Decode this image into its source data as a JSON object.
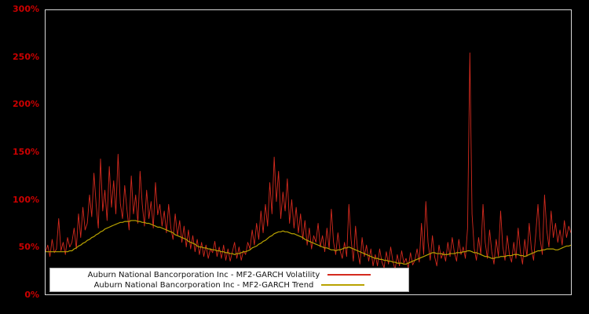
{
  "figure": {
    "background_color": "#000000",
    "axis_label_color": "#cc0000",
    "frame_color": "#d8d8d8"
  },
  "y_axis": {
    "ticks": [
      {
        "label": "300%",
        "value": 300
      },
      {
        "label": "250%",
        "value": 250
      },
      {
        "label": "200%",
        "value": 200
      },
      {
        "label": "150%",
        "value": 150
      },
      {
        "label": "100%",
        "value": 100
      },
      {
        "label": "50%",
        "value": 50
      },
      {
        "label": "0%",
        "value": 0
      }
    ]
  },
  "legend": {
    "items": [
      {
        "label": "Auburn National Bancorporation Inc - MF2-GARCH Volatility",
        "color": "#d42a1e"
      },
      {
        "label": "Auburn National Bancorporation Inc - MF2-GARCH Trend",
        "color": "#b8a200"
      }
    ]
  },
  "chart_data": {
    "type": "line",
    "title": "",
    "xlabel": "",
    "ylabel": "",
    "ylim": [
      0,
      300
    ],
    "grid": false,
    "legend_position": "bottom-left",
    "series": [
      {
        "name": "Auburn National Bancorporation Inc - MF2-GARCH Volatility",
        "key": "volatility",
        "color": "#d42a1e",
        "values": [
          45,
          52,
          40,
          58,
          44,
          48,
          80,
          46,
          55,
          42,
          60,
          50,
          55,
          70,
          48,
          85,
          60,
          92,
          68,
          75,
          105,
          82,
          128,
          95,
          70,
          143,
          88,
          110,
          78,
          135,
          92,
          120,
          85,
          148,
          96,
          80,
          115,
          90,
          68,
          125,
          85,
          105,
          75,
          130,
          95,
          72,
          110,
          80,
          98,
          70,
          118,
          84,
          95,
          72,
          88,
          65,
          95,
          70,
          58,
          85,
          62,
          78,
          55,
          72,
          50,
          68,
          48,
          62,
          45,
          58,
          42,
          55,
          40,
          52,
          38,
          48,
          44,
          56,
          40,
          50,
          38,
          52,
          36,
          48,
          35,
          45,
          55,
          38,
          50,
          36,
          46,
          42,
          55,
          48,
          68,
          52,
          75,
          58,
          88,
          65,
          95,
          72,
          118,
          85,
          145,
          98,
          130,
          80,
          108,
          88,
          122,
          75,
          100,
          70,
          92,
          65,
          85,
          58,
          78,
          52,
          70,
          48,
          62,
          55,
          75,
          50,
          62,
          45,
          70,
          48,
          90,
          55,
          42,
          65,
          46,
          38,
          55,
          40,
          95,
          58,
          35,
          72,
          45,
          32,
          60,
          40,
          52,
          35,
          48,
          30,
          42,
          30,
          48,
          34,
          28,
          45,
          32,
          50,
          35,
          26,
          42,
          30,
          46,
          33,
          38,
          28,
          44,
          31,
          36,
          48,
          34,
          75,
          42,
          98,
          55,
          36,
          62,
          40,
          30,
          52,
          38,
          45,
          35,
          55,
          40,
          60,
          44,
          35,
          58,
          42,
          50,
          38,
          70,
          255,
          85,
          48,
          36,
          60,
          42,
          95,
          55,
          38,
          68,
          45,
          32,
          58,
          40,
          88,
          50,
          36,
          62,
          42,
          34,
          55,
          38,
          70,
          45,
          32,
          58,
          40,
          75,
          48,
          36,
          64,
          95,
          58,
          42,
          105,
          68,
          50,
          88,
          60,
          75,
          55,
          68,
          52,
          78,
          60,
          72,
          65
        ]
      },
      {
        "name": "Auburn National Bancorporation Inc - MF2-GARCH Trend",
        "key": "trend",
        "color": "#b8a200",
        "values": [
          45,
          45,
          45,
          45,
          45,
          45,
          45,
          45,
          45,
          45,
          45,
          46,
          46,
          48,
          49,
          51,
          52,
          54,
          55,
          57,
          58,
          60,
          61,
          63,
          64,
          66,
          67,
          69,
          70,
          71,
          72,
          73,
          74,
          75,
          76,
          76,
          77,
          77,
          77,
          78,
          78,
          78,
          77,
          77,
          76,
          76,
          75,
          75,
          74,
          73,
          72,
          71,
          71,
          70,
          69,
          68,
          67,
          66,
          65,
          63,
          62,
          61,
          60,
          59,
          58,
          56,
          55,
          54,
          53,
          51,
          50,
          50,
          49,
          49,
          48,
          48,
          47,
          47,
          46,
          46,
          45,
          45,
          44,
          44,
          43,
          43,
          42,
          43,
          43,
          44,
          45,
          45,
          46,
          47,
          49,
          50,
          51,
          53,
          54,
          56,
          57,
          59,
          61,
          62,
          64,
          65,
          66,
          66,
          67,
          66,
          66,
          65,
          64,
          64,
          63,
          62,
          61,
          60,
          58,
          57,
          56,
          55,
          54,
          53,
          52,
          51,
          50,
          49,
          49,
          48,
          47,
          47,
          46,
          47,
          47,
          48,
          49,
          49,
          50,
          49,
          48,
          47,
          46,
          45,
          44,
          43,
          42,
          41,
          40,
          39,
          38,
          38,
          37,
          37,
          36,
          36,
          35,
          35,
          34,
          34,
          33,
          33,
          33,
          32,
          32,
          33,
          34,
          35,
          36,
          37,
          38,
          39,
          40,
          41,
          42,
          43,
          44,
          44,
          43,
          43,
          43,
          42,
          42,
          42,
          43,
          43,
          43,
          44,
          44,
          44,
          45,
          45,
          46,
          46,
          45,
          44,
          44,
          43,
          42,
          41,
          40,
          40,
          39,
          38,
          38,
          39,
          39,
          40,
          40,
          40,
          41,
          41,
          41,
          42,
          42,
          42,
          41,
          41,
          40,
          41,
          42,
          43,
          44,
          45,
          46,
          46,
          47,
          47,
          48,
          48,
          48,
          48,
          47,
          47,
          48,
          49,
          50,
          51,
          51,
          52
        ]
      }
    ]
  }
}
